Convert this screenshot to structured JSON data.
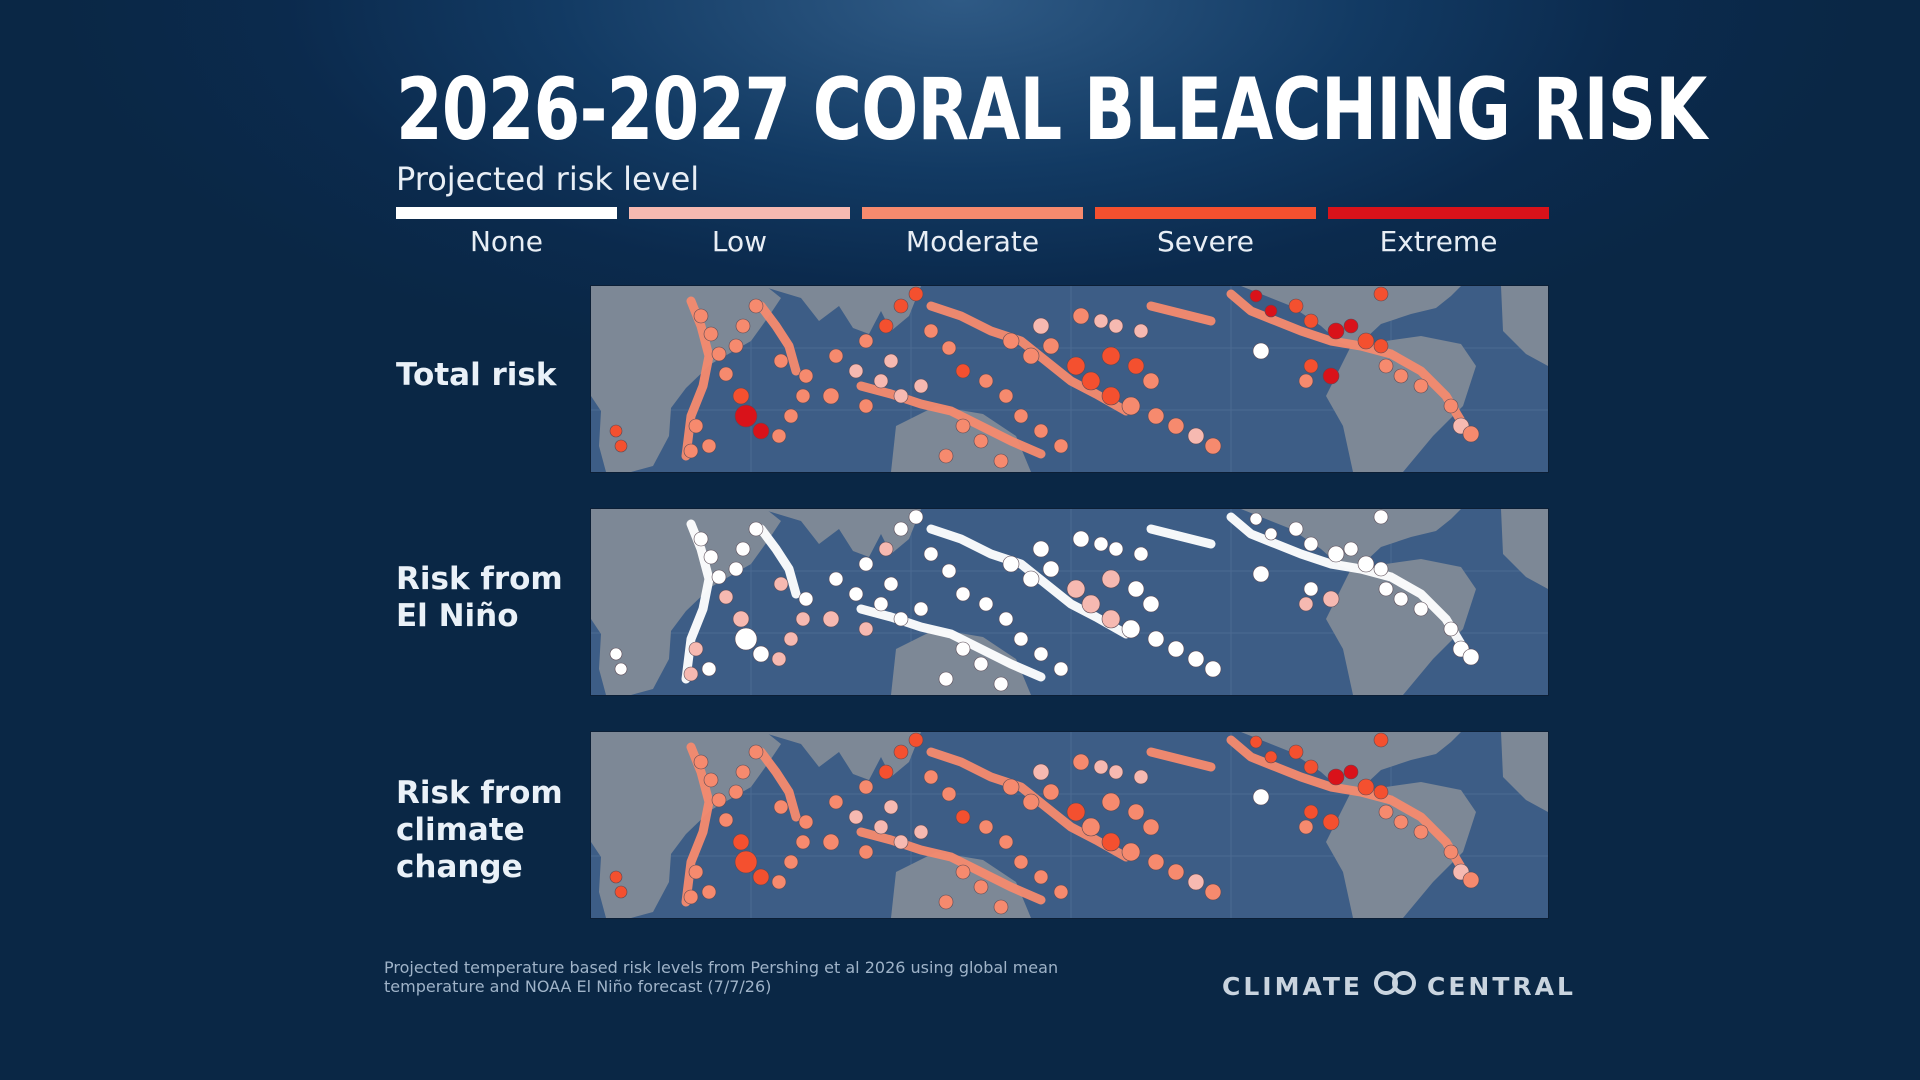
{
  "title": "2026-2027 CORAL BLEACHING RISK",
  "subtitle": "Projected risk level",
  "legend": [
    {
      "label": "None",
      "color": "#ffffff"
    },
    {
      "label": "Low",
      "color": "#f6b9b1"
    },
    {
      "label": "Moderate",
      "color": "#f68a6e"
    },
    {
      "label": "Severe",
      "color": "#f4502f"
    },
    {
      "label": "Extreme",
      "color": "#d9121a"
    }
  ],
  "panels": [
    {
      "label": "Total risk",
      "mode": "total"
    },
    {
      "label": "Risk from El Niño",
      "mode": "elnino"
    },
    {
      "label": "Risk from climate change",
      "mode": "climate"
    }
  ],
  "colors": {
    "ocean": "#3d5d86",
    "land": "#7d8896",
    "grid": "#4b6a92"
  },
  "footnote": "Projected temperature based risk levels from Pershing et al 2026 using global mean temperature and NOAA El Niño forecast (7/7/26)",
  "logo": {
    "left": "CLIMATE",
    "right": "CENTRAL",
    "icon": "climate-central-rings-icon"
  }
}
